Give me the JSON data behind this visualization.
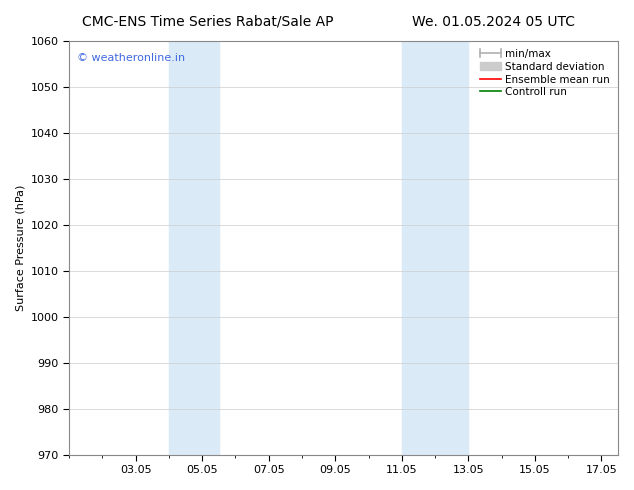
{
  "title_left": "CMC-ENS Time Series Rabat/Sale AP",
  "title_right": "We. 01.05.2024 05 UTC",
  "ylabel": "Surface Pressure (hPa)",
  "ylim": [
    970,
    1060
  ],
  "yticks": [
    970,
    980,
    990,
    1000,
    1010,
    1020,
    1030,
    1040,
    1050,
    1060
  ],
  "xlim": [
    1.0,
    17.5
  ],
  "xtick_labels": [
    "03.05",
    "05.05",
    "07.05",
    "09.05",
    "11.05",
    "13.05",
    "15.05",
    "17.05"
  ],
  "xtick_positions": [
    3,
    5,
    7,
    9,
    11,
    13,
    15,
    17
  ],
  "shaded_bands": [
    {
      "x_start": 4.0,
      "x_end": 5.5
    },
    {
      "x_start": 11.0,
      "x_end": 13.0
    }
  ],
  "shaded_color": "#daeaf7",
  "watermark_text": "© weatheronline.in",
  "watermark_color": "#4169e1",
  "legend_entries": [
    {
      "label": "min/max",
      "color": "#b0b0b0",
      "lw": 1.2
    },
    {
      "label": "Standard deviation",
      "color": "#cccccc",
      "lw": 5
    },
    {
      "label": "Ensemble mean run",
      "color": "red",
      "lw": 1.2
    },
    {
      "label": "Controll run",
      "color": "green",
      "lw": 1.2
    }
  ],
  "bg_color": "#ffffff",
  "grid_color": "#cccccc",
  "title_fontsize": 10,
  "tick_fontsize": 8,
  "legend_fontsize": 7.5
}
